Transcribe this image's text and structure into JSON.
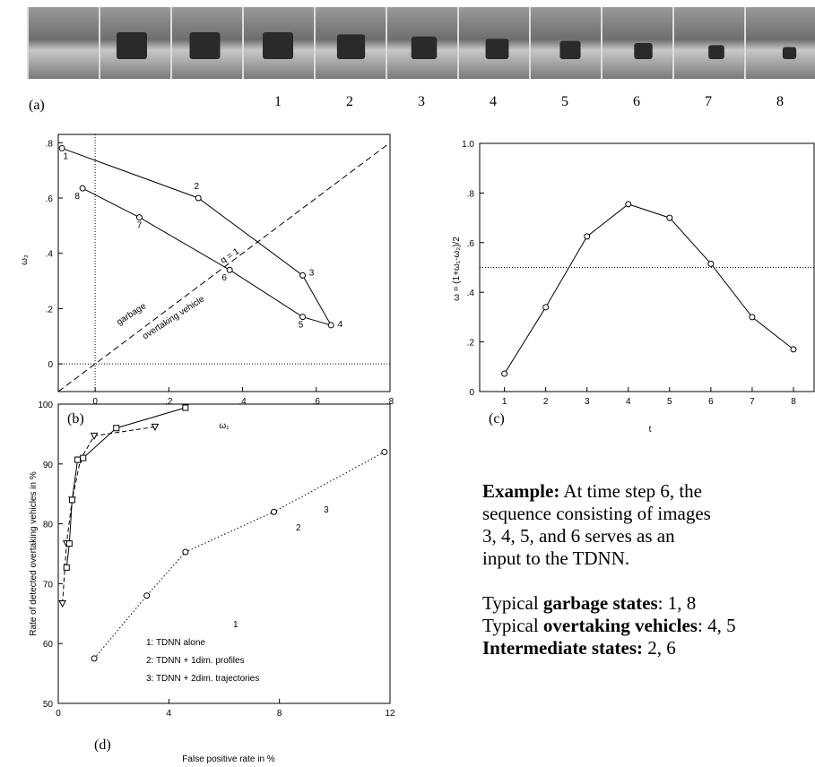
{
  "panel_a": {
    "label": "(a)",
    "frame_numbers": [
      "1",
      "2",
      "3",
      "4",
      "5",
      "6",
      "7",
      "8"
    ]
  },
  "chart_data": [
    {
      "type": "line",
      "panel_label": "(b)",
      "x_label": "ω₁",
      "y_label": "ω₂",
      "x": [
        -0.09,
        0.28,
        0.563,
        0.64,
        0.563,
        0.365,
        0.12,
        -0.034
      ],
      "values": [
        0.78,
        0.6,
        0.32,
        0.14,
        0.17,
        0.34,
        0.53,
        0.635
      ],
      "point_labels": [
        "1",
        "2",
        "3",
        "4",
        "5",
        "6",
        "7",
        "8"
      ],
      "marker": "circle",
      "linestyle": "solid",
      "color": "#000000",
      "xlim": [
        -0.1,
        0.8
      ],
      "ylim": [
        -0.1,
        0.83
      ],
      "xticks": [
        0,
        {
          "value": 0.2,
          "label": ".2"
        },
        {
          "value": 0.4,
          "label": ".4"
        },
        {
          "value": 0.6,
          "label": ".6"
        },
        {
          "value": 0.8,
          "label": ".8"
        }
      ],
      "yticks": [
        0,
        {
          "value": 0.2,
          "label": ".2"
        },
        {
          "value": 0.4,
          "label": ".4"
        },
        {
          "value": 0.6,
          "label": ".6"
        },
        {
          "value": 0.8,
          "label": ".8"
        }
      ],
      "hlines": [
        0
      ],
      "vlines": [
        0
      ],
      "diagonal": true,
      "annotations": [
        "q = 1",
        "garbage",
        "overtaking vehicle"
      ]
    },
    {
      "type": "line",
      "panel_label": "(c)",
      "x_label": "t",
      "y_label": "ω = (1+ω₁-ω₂)/2",
      "x": [
        1,
        2,
        3,
        4,
        5,
        6,
        7,
        8
      ],
      "values": [
        0.072,
        0.34,
        0.625,
        0.755,
        0.7,
        0.515,
        0.3,
        0.17
      ],
      "marker": "circle",
      "linestyle": "solid",
      "color": "#000000",
      "xlim": [
        0.4,
        8.5
      ],
      "ylim": [
        0,
        1
      ],
      "xticks": [
        1,
        2,
        3,
        4,
        5,
        6,
        7,
        8
      ],
      "yticks": [
        0,
        {
          "value": 0.2,
          "label": ".2"
        },
        {
          "value": 0.4,
          "label": ".4"
        },
        {
          "value": 0.6,
          "label": ".6"
        },
        {
          "value": 0.8,
          "label": ".8"
        },
        {
          "value": 1.0,
          "label": "1.0"
        }
      ],
      "hlines": [
        0.5
      ]
    },
    {
      "type": "line",
      "panel_label": "(d)",
      "x_label": "False positive rate in %",
      "y_label": "Rate of detected overtaking vehicles in %",
      "series": [
        {
          "name": "1: TDNN alone",
          "label": "1",
          "marker": "circle",
          "linestyle": "dotted",
          "color": "#000000",
          "x": [
            1.3,
            3.2,
            4.6,
            7.8,
            11.8
          ],
          "values": [
            57.5,
            68,
            75.3,
            82,
            92
          ]
        },
        {
          "name": "2: TDNN + 1dim. profiles",
          "label": "2",
          "marker": "triangle",
          "linestyle": "dashed",
          "color": "#000000",
          "x": [
            0.15,
            0.3,
            0.5,
            0.8,
            1.3,
            3.5
          ],
          "values": [
            66.7,
            76.7,
            84,
            90.7,
            94.7,
            96.2
          ]
        },
        {
          "name": "3: TDNN + 2dim. trajectories",
          "label": "3",
          "marker": "square",
          "linestyle": "solid",
          "color": "#000000",
          "x": [
            0.3,
            0.4,
            0.5,
            0.7,
            0.9,
            2.1,
            4.6
          ],
          "values": [
            72.7,
            76.7,
            84,
            90.7,
            91,
            96,
            99.4
          ]
        }
      ],
      "xlim": [
        0,
        12
      ],
      "ylim": [
        50,
        100
      ],
      "xticks": [
        0,
        4,
        8,
        12
      ],
      "yticks": [
        50,
        60,
        70,
        80,
        90,
        100
      ]
    }
  ],
  "text": {
    "example_label": "Example:",
    "example_lines": [
      "At time step 6, the",
      "sequence consisting of images",
      "3, 4, 5, and 6 serves as an",
      "input to the TDNN."
    ],
    "states": [
      {
        "prefix": "Typical ",
        "bold": "garbage states",
        "suffix": ": 1, 8"
      },
      {
        "prefix": "Typical ",
        "bold": "overtaking vehicles",
        "suffix": ": 4, 5"
      },
      {
        "bold": "Intermediate states:",
        "suffix": " 2, 6"
      }
    ]
  }
}
